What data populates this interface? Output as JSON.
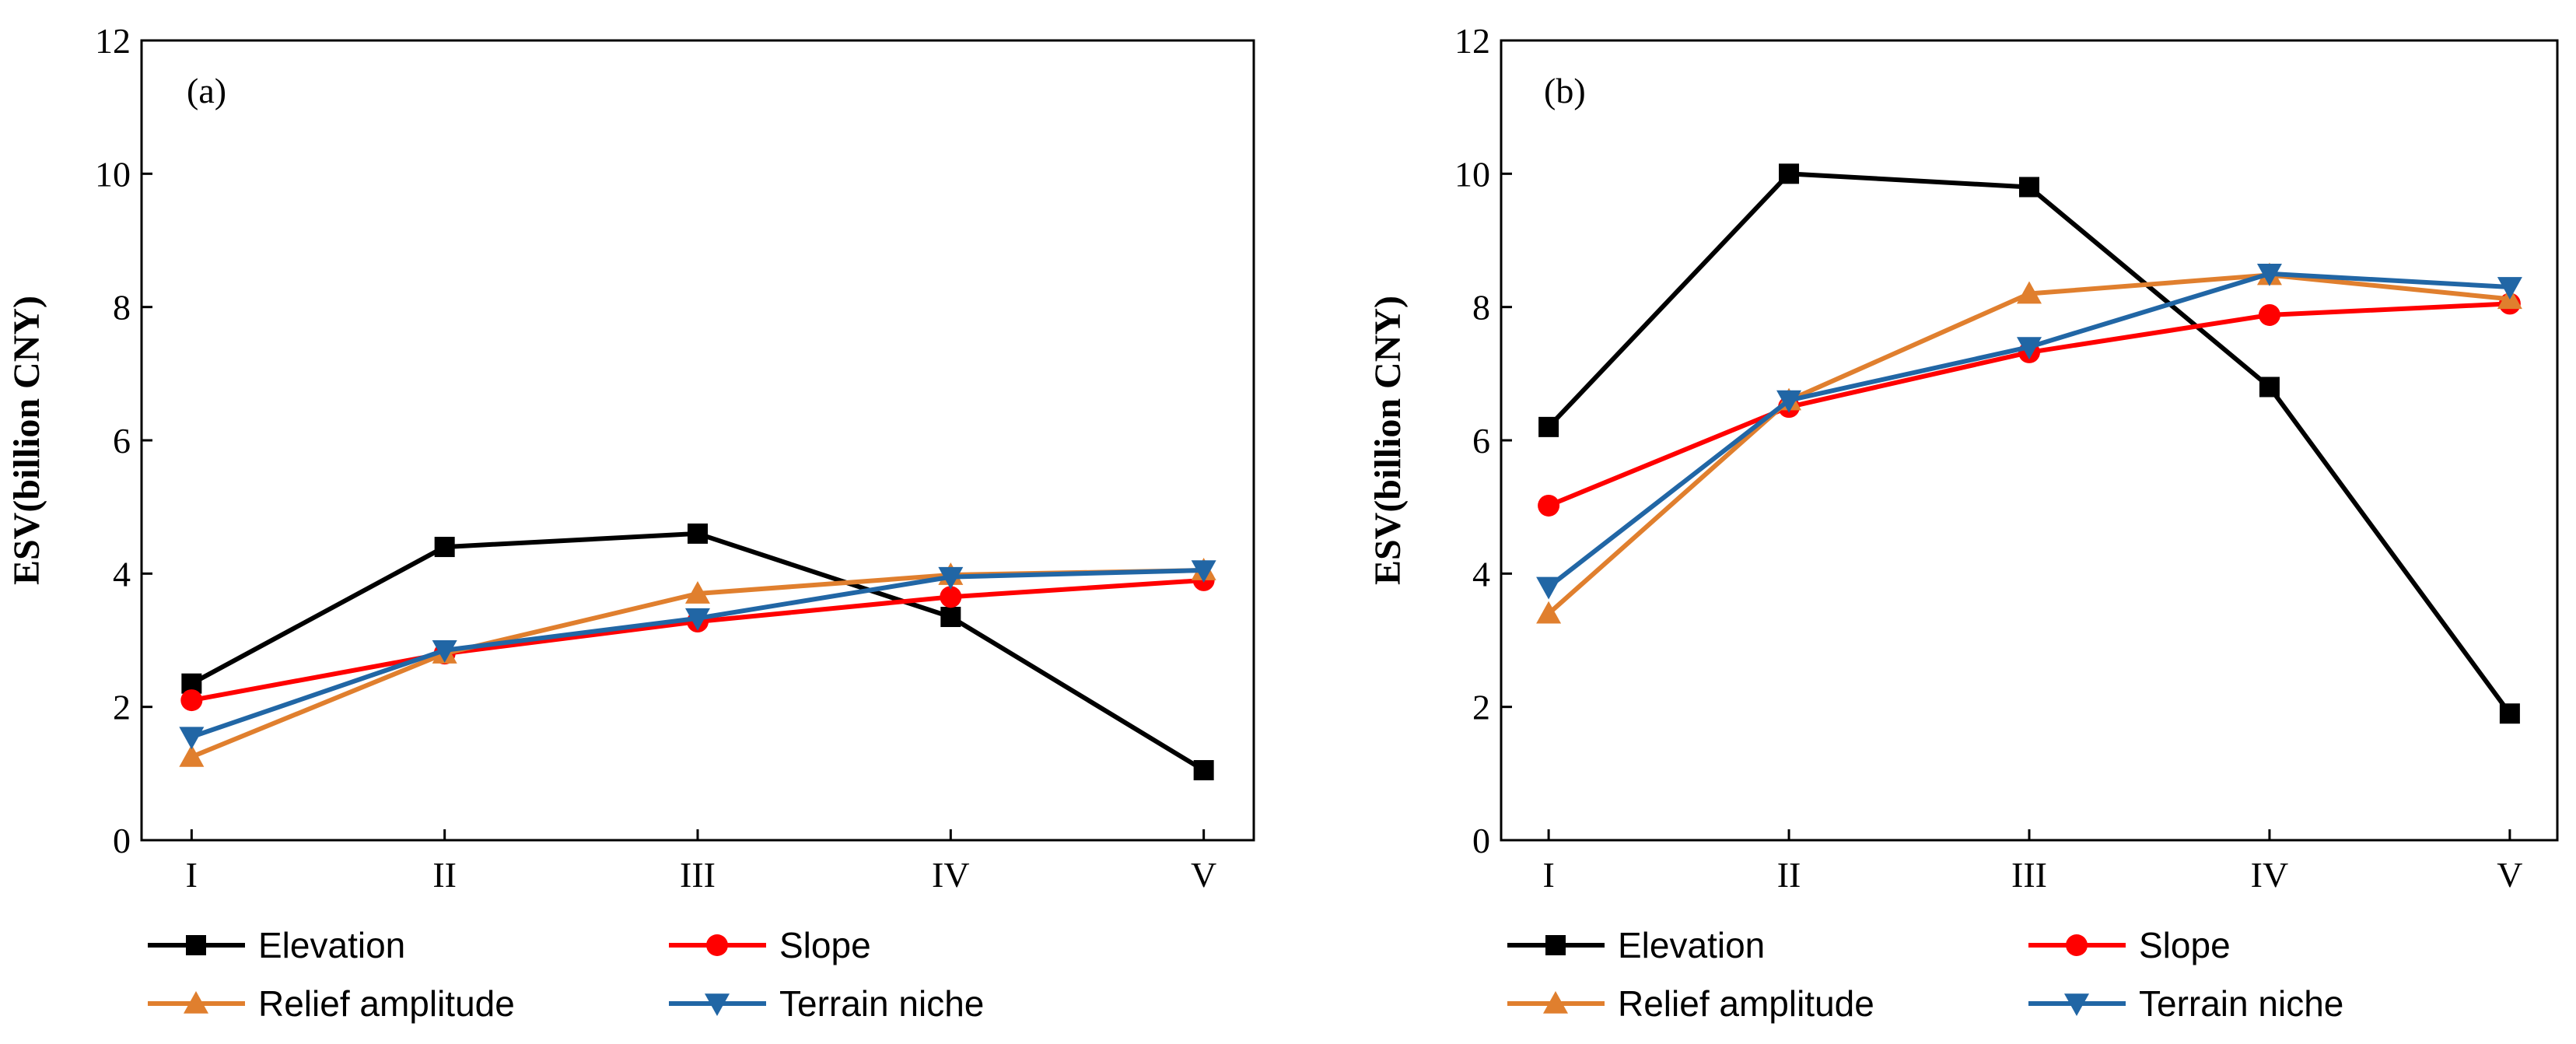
{
  "chart_data": [
    {
      "type": "line",
      "panel_label": "(a)",
      "categories": [
        "I",
        "II",
        "III",
        "IV",
        "V"
      ],
      "ylabel": "ESV(billion CNY)",
      "xlabel": "",
      "ylim": [
        0,
        12
      ],
      "yticks": [
        0,
        2,
        4,
        6,
        8,
        10,
        12
      ],
      "legend_position": "bottom",
      "series": [
        {
          "name": "Elevation",
          "color": "#000000",
          "marker": "square",
          "values": [
            2.35,
            4.4,
            4.6,
            3.35,
            1.05
          ]
        },
        {
          "name": "Slope",
          "color": "#ff0000",
          "marker": "circle",
          "values": [
            2.1,
            2.8,
            3.28,
            3.65,
            3.9
          ]
        },
        {
          "name": "Relief amplitude",
          "color": "#e07f2e",
          "marker": "triangle-up",
          "values": [
            1.25,
            2.8,
            3.7,
            3.98,
            4.05
          ]
        },
        {
          "name": "Terrain niche",
          "color": "#2166a5",
          "marker": "triangle-down",
          "values": [
            1.55,
            2.85,
            3.33,
            3.95,
            4.05
          ]
        }
      ]
    },
    {
      "type": "line",
      "panel_label": "(b)",
      "categories": [
        "I",
        "II",
        "III",
        "IV",
        "V"
      ],
      "ylabel": "ESV(billion CNY)",
      "xlabel": "",
      "ylim": [
        0,
        12
      ],
      "yticks": [
        0,
        2,
        4,
        6,
        8,
        10,
        12
      ],
      "legend_position": "bottom",
      "series": [
        {
          "name": "Elevation",
          "color": "#000000",
          "marker": "square",
          "values": [
            6.2,
            10.0,
            9.8,
            6.8,
            1.9
          ]
        },
        {
          "name": "Slope",
          "color": "#ff0000",
          "marker": "circle",
          "values": [
            5.02,
            6.5,
            7.32,
            7.88,
            8.05
          ]
        },
        {
          "name": "Relief amplitude",
          "color": "#e07f2e",
          "marker": "triangle-up",
          "values": [
            3.4,
            6.6,
            8.2,
            8.48,
            8.12
          ]
        },
        {
          "name": "Terrain niche",
          "color": "#2166a5",
          "marker": "triangle-down",
          "values": [
            3.8,
            6.6,
            7.4,
            8.5,
            8.3
          ]
        }
      ]
    }
  ]
}
